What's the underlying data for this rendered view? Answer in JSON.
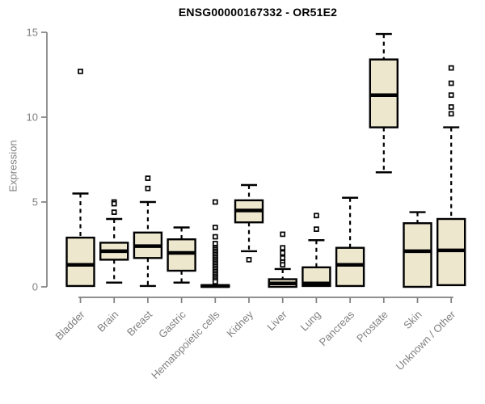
{
  "chart_data": {
    "type": "boxplot",
    "title": "ENSG00000167332 - OR51E2",
    "xlabel": "",
    "ylabel": "Expression",
    "ylim": [
      0,
      15
    ],
    "yticks": [
      0,
      5,
      10,
      15
    ],
    "grid": false,
    "legend": "none",
    "colors": {
      "box_fill": "#EDE7CE",
      "box_stroke": "#000000",
      "whisker": "#000000",
      "axis": "#808080",
      "tick_label": "#808080",
      "title": "#000000"
    },
    "categories": [
      "Bladder",
      "Brain",
      "Breast",
      "Gastric",
      "Hematopoietic cells",
      "Kidney",
      "Liver",
      "Lung",
      "Pancreas",
      "Prostate",
      "Skin",
      "Unknown / Other"
    ],
    "series": [
      {
        "category": "Bladder",
        "whisker_low": 0.05,
        "q1": 0.05,
        "median": 1.3,
        "q3": 2.9,
        "whisker_high": 5.5,
        "outliers": [
          12.7
        ]
      },
      {
        "category": "Brain",
        "whisker_low": 0.25,
        "q1": 1.6,
        "median": 2.1,
        "q3": 2.6,
        "whisker_high": 4.0,
        "outliers": [
          5.0,
          4.9,
          4.4
        ]
      },
      {
        "category": "Breast",
        "whisker_low": 0.05,
        "q1": 1.7,
        "median": 2.4,
        "q3": 3.2,
        "whisker_high": 5.0,
        "outliers": [
          6.4,
          5.8
        ]
      },
      {
        "category": "Gastric",
        "whisker_low": 0.25,
        "q1": 0.95,
        "median": 2.0,
        "q3": 2.8,
        "whisker_high": 3.5,
        "outliers": []
      },
      {
        "category": "Hematopoietic cells",
        "whisker_low": 0.0,
        "q1": 0.0,
        "median": 0.05,
        "q3": 0.1,
        "whisker_high": 0.1,
        "outliers": [
          5.0,
          3.5,
          2.95,
          2.55,
          2.3,
          2.2,
          2.1,
          2.0,
          1.9,
          1.8,
          1.7,
          1.6,
          1.5,
          1.4,
          1.3,
          1.2,
          1.1,
          1.0,
          0.9,
          0.8,
          0.7,
          0.6,
          0.5,
          0.4,
          0.3
        ]
      },
      {
        "category": "Kidney",
        "whisker_low": 2.1,
        "q1": 3.8,
        "median": 4.5,
        "q3": 5.1,
        "whisker_high": 6.0,
        "outliers": [
          1.6
        ]
      },
      {
        "category": "Liver",
        "whisker_low": 0.0,
        "q1": 0.0,
        "median": 0.2,
        "q3": 0.45,
        "whisker_high": 1.05,
        "outliers": [
          3.1,
          2.3,
          2.0,
          1.7,
          1.45,
          1.3
        ]
      },
      {
        "category": "Lung",
        "whisker_low": 0.05,
        "q1": 0.05,
        "median": 0.2,
        "q3": 1.15,
        "whisker_high": 2.75,
        "outliers": [
          4.2,
          3.4
        ]
      },
      {
        "category": "Pancreas",
        "whisker_low": 0.05,
        "q1": 0.05,
        "median": 1.3,
        "q3": 2.3,
        "whisker_high": 5.25,
        "outliers": []
      },
      {
        "category": "Prostate",
        "whisker_low": 6.75,
        "q1": 9.4,
        "median": 11.3,
        "q3": 13.4,
        "whisker_high": 14.9,
        "outliers": []
      },
      {
        "category": "Skin",
        "whisker_low": 0.0,
        "q1": 0.0,
        "median": 2.1,
        "q3": 3.75,
        "whisker_high": 4.4,
        "outliers": []
      },
      {
        "category": "Unknown / Other",
        "whisker_low": 0.1,
        "q1": 0.1,
        "median": 2.15,
        "q3": 4.0,
        "whisker_high": 9.4,
        "outliers": [
          12.9,
          12.0,
          11.3,
          10.6,
          10.2
        ]
      }
    ]
  }
}
